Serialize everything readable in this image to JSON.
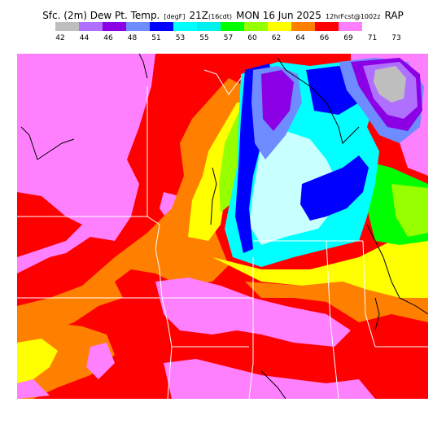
{
  "title": {
    "main_prefix": "Sfc. (2m) Dew Pt. Temp.",
    "unit": "[degF]",
    "time": "21Z",
    "local_time": "(16cdt)",
    "date": "MON 16 Jun 2025",
    "forecast": "12hrFcst@1002z",
    "model": "RAP"
  },
  "legend": {
    "labels": [
      "42",
      "44",
      "46",
      "48",
      "51",
      "53",
      "55",
      "57",
      "60",
      "62",
      "64",
      "66",
      "69",
      "71",
      "73"
    ],
    "colors": [
      "#bebebe",
      "#b070ff",
      "#8c00e6",
      "#6e8cff",
      "#0000ff",
      "#00ffff",
      "#00f0f0",
      "#00ff00",
      "#96ff00",
      "#ffff00",
      "#ff8000",
      "#ff0000",
      "#ff80ff"
    ]
  },
  "map_colors": {
    "gray": "#bebebe",
    "lavender": "#b070ff",
    "purple": "#8c00e6",
    "medium_blue": "#6e8cff",
    "blue": "#0000ff",
    "light_cyan": "#c8ffff",
    "cyan": "#00ffff",
    "green": "#00ff00",
    "yellow_green": "#96ff00",
    "yellow": "#ffff00",
    "orange": "#ff8000",
    "red": "#ff0000",
    "pink": "#ff80ff"
  }
}
